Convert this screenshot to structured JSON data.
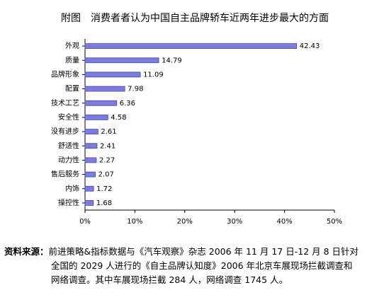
{
  "chart_data": {
    "type": "hbar",
    "title": "附图　消费者者认为中国自主品牌轿车近两年进步最大的方面",
    "categories": [
      "外观",
      "质量",
      "品牌形象",
      "配置",
      "技术工艺",
      "安全性",
      "没有进步",
      "舒适性",
      "动力性",
      "售后服务",
      "内饰",
      "操控性"
    ],
    "values": [
      42.43,
      14.79,
      11.09,
      7.98,
      6.36,
      4.58,
      2.61,
      2.41,
      2.27,
      2.07,
      1.72,
      1.68
    ],
    "color": "#7b7be0",
    "xlim": [
      0,
      50
    ],
    "xticks": [
      {
        "value": 0,
        "label": "0%"
      },
      {
        "value": 10,
        "label": "10%"
      },
      {
        "value": 20,
        "label": "20%"
      },
      {
        "value": 30,
        "label": "30%"
      },
      {
        "value": 40,
        "label": "40%"
      },
      {
        "value": 50,
        "label": "50%"
      }
    ],
    "grid": false
  },
  "source": {
    "label": "资料来源：",
    "lines": [
      "前进策略&指标数据与《汽车观察》杂志 2006 年 11 月 17 日-12 月 8 日针对",
      "全国的 2029 人进行的《自主品牌认知度》2006 年北京车展现场拦截调查和",
      "网络调查。其中车展现场拦截 284 人，网络调查 1745 人。"
    ]
  }
}
